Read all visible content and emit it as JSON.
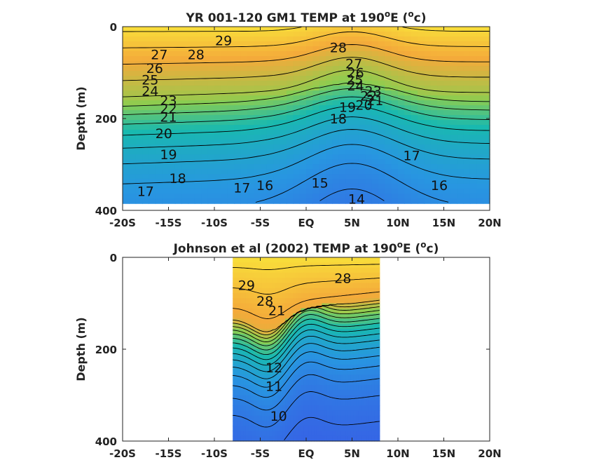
{
  "colors": {
    "warm": "#f9e43a",
    "mid": "#22b8a8",
    "cool": "#3a55e6",
    "contour": "#000000",
    "axis": "#222222"
  },
  "chart_data": [
    {
      "type": "heatmap",
      "title_main": "YR 001-120 GM1 TEMP at 190",
      "title_sup1": "o",
      "title_mid": "E (",
      "title_sup2": "o",
      "title_end": "c)",
      "ylabel": "Depth (m)",
      "xlabel": "",
      "xlim": [
        -20,
        20
      ],
      "ylim": [
        0,
        400
      ],
      "y_reversed": true,
      "x_ticks": [
        -20,
        -15,
        -10,
        -5,
        0,
        5,
        10,
        15,
        20
      ],
      "x_tick_labels": [
        "-20S",
        "-15S",
        "-10S",
        "-5S",
        "EQ",
        "5N",
        "10N",
        "15N",
        "20N"
      ],
      "y_ticks": [
        0,
        200,
        400
      ],
      "y_tick_labels": [
        "0",
        "200",
        "400"
      ],
      "data_extent": {
        "x": [
          -20,
          20
        ],
        "depth": [
          0,
          385
        ]
      },
      "contour_interval": 1,
      "contour_labels": [
        {
          "text": "29",
          "x": -9.0,
          "depth": 30
        },
        {
          "text": "28",
          "x": -12.0,
          "depth": 60
        },
        {
          "text": "28",
          "x": 3.5,
          "depth": 45
        },
        {
          "text": "27",
          "x": -16.0,
          "depth": 60
        },
        {
          "text": "26",
          "x": -16.5,
          "depth": 90
        },
        {
          "text": "25",
          "x": -17.0,
          "depth": 115
        },
        {
          "text": "24",
          "x": -17.0,
          "depth": 140
        },
        {
          "text": "23",
          "x": -15.0,
          "depth": 160
        },
        {
          "text": "22",
          "x": -15.0,
          "depth": 178
        },
        {
          "text": "21",
          "x": -15.0,
          "depth": 196
        },
        {
          "text": "20",
          "x": -15.5,
          "depth": 232
        },
        {
          "text": "19",
          "x": -15.0,
          "depth": 278
        },
        {
          "text": "18",
          "x": -14.0,
          "depth": 330
        },
        {
          "text": "17",
          "x": -17.5,
          "depth": 358
        },
        {
          "text": "17",
          "x": -7.0,
          "depth": 350
        },
        {
          "text": "16",
          "x": -4.5,
          "depth": 345
        },
        {
          "text": "15",
          "x": 1.5,
          "depth": 340
        },
        {
          "text": "14",
          "x": 5.5,
          "depth": 375
        },
        {
          "text": "27",
          "x": 5.2,
          "depth": 80
        },
        {
          "text": "26",
          "x": 5.4,
          "depth": 100
        },
        {
          "text": "25",
          "x": 5.3,
          "depth": 115
        },
        {
          "text": "24",
          "x": 5.4,
          "depth": 128
        },
        {
          "text": "23",
          "x": 7.3,
          "depth": 140
        },
        {
          "text": "22",
          "x": 6.8,
          "depth": 150
        },
        {
          "text": "21",
          "x": 7.5,
          "depth": 160
        },
        {
          "text": "20",
          "x": 6.3,
          "depth": 170
        },
        {
          "text": "19",
          "x": 4.5,
          "depth": 175
        },
        {
          "text": "18",
          "x": 3.5,
          "depth": 200
        },
        {
          "text": "17",
          "x": 11.5,
          "depth": 280
        },
        {
          "text": "16",
          "x": 14.5,
          "depth": 345
        }
      ]
    },
    {
      "type": "heatmap",
      "title_main": "Johnson et al (2002) TEMP at 190",
      "title_sup1": "o",
      "title_mid": "E (",
      "title_sup2": "o",
      "title_end": "c)",
      "ylabel": "Depth (m)",
      "xlabel": "",
      "xlim": [
        -20,
        20
      ],
      "ylim": [
        0,
        400
      ],
      "y_reversed": true,
      "x_ticks": [
        -20,
        -15,
        -10,
        -5,
        0,
        5,
        10,
        15,
        20
      ],
      "x_tick_labels": [
        "-20S",
        "-15S",
        "-10S",
        "-5S",
        "EQ",
        "5N",
        "10N",
        "15N",
        "20N"
      ],
      "y_ticks": [
        0,
        200,
        400
      ],
      "y_tick_labels": [
        "0",
        "200",
        "400"
      ],
      "data_extent": {
        "x": [
          -8,
          8
        ],
        "depth": [
          0,
          400
        ]
      },
      "contour_interval": 1,
      "contour_labels": [
        {
          "text": "29",
          "x": -6.5,
          "depth": 60
        },
        {
          "text": "28",
          "x": -4.5,
          "depth": 95
        },
        {
          "text": "28",
          "x": 4.0,
          "depth": 45
        },
        {
          "text": "21",
          "x": -3.2,
          "depth": 115
        },
        {
          "text": "12",
          "x": -3.5,
          "depth": 240
        },
        {
          "text": "11",
          "x": -3.5,
          "depth": 280
        },
        {
          "text": "10",
          "x": -3.0,
          "depth": 345
        }
      ]
    }
  ]
}
